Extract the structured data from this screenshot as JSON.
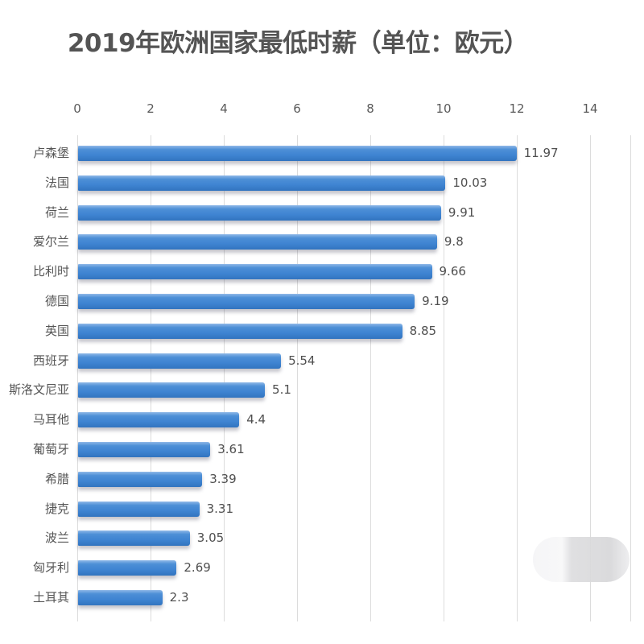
{
  "title": "2019年欧洲国家最低时薪（单位：欧元）",
  "axis": {
    "ticks": [
      "0",
      "2",
      "4",
      "6",
      "8",
      "10",
      "12",
      "14"
    ]
  },
  "bars": [
    {
      "label": "卢森堡",
      "value": "11.97"
    },
    {
      "label": "法国",
      "value": "10.03"
    },
    {
      "label": "荷兰",
      "value": "9.91"
    },
    {
      "label": "爱尔兰",
      "value": "9.8"
    },
    {
      "label": "比利时",
      "value": "9.66"
    },
    {
      "label": "德国",
      "value": "9.19"
    },
    {
      "label": "英国",
      "value": "8.85"
    },
    {
      "label": "西班牙",
      "value": "5.54"
    },
    {
      "label": "斯洛文尼亚",
      "value": "5.1"
    },
    {
      "label": "马耳他",
      "value": "4.4"
    },
    {
      "label": "葡萄牙",
      "value": "3.61"
    },
    {
      "label": "希腊",
      "value": "3.39"
    },
    {
      "label": "捷克",
      "value": "3.31"
    },
    {
      "label": "波兰",
      "value": "3.05"
    },
    {
      "label": "匈牙利",
      "value": "2.69"
    },
    {
      "label": "土耳其",
      "value": "2.3"
    }
  ],
  "colors": {
    "bar": "#3f84d2",
    "gridline": "#dcdcdc",
    "text": "#555555"
  },
  "chart_data": {
    "type": "bar",
    "orientation": "horizontal",
    "title": "2019年欧洲国家最低时薪（单位：欧元）",
    "xlabel": "",
    "ylabel": "",
    "categories": [
      "卢森堡",
      "法国",
      "荷兰",
      "爱尔兰",
      "比利时",
      "德国",
      "英国",
      "西班牙",
      "斯洛文尼亚",
      "马耳他",
      "葡萄牙",
      "希腊",
      "捷克",
      "波兰",
      "匈牙利",
      "土耳其"
    ],
    "values": [
      11.97,
      10.03,
      9.91,
      9.8,
      9.66,
      9.19,
      8.85,
      5.54,
      5.1,
      4.4,
      3.61,
      3.39,
      3.31,
      3.05,
      2.69,
      2.3
    ],
    "xlim": [
      0,
      14
    ],
    "xticks": [
      0,
      2,
      4,
      6,
      8,
      10,
      12,
      14
    ],
    "x_axis_position": "top",
    "grid": true,
    "data_labels": true,
    "legend": null
  }
}
